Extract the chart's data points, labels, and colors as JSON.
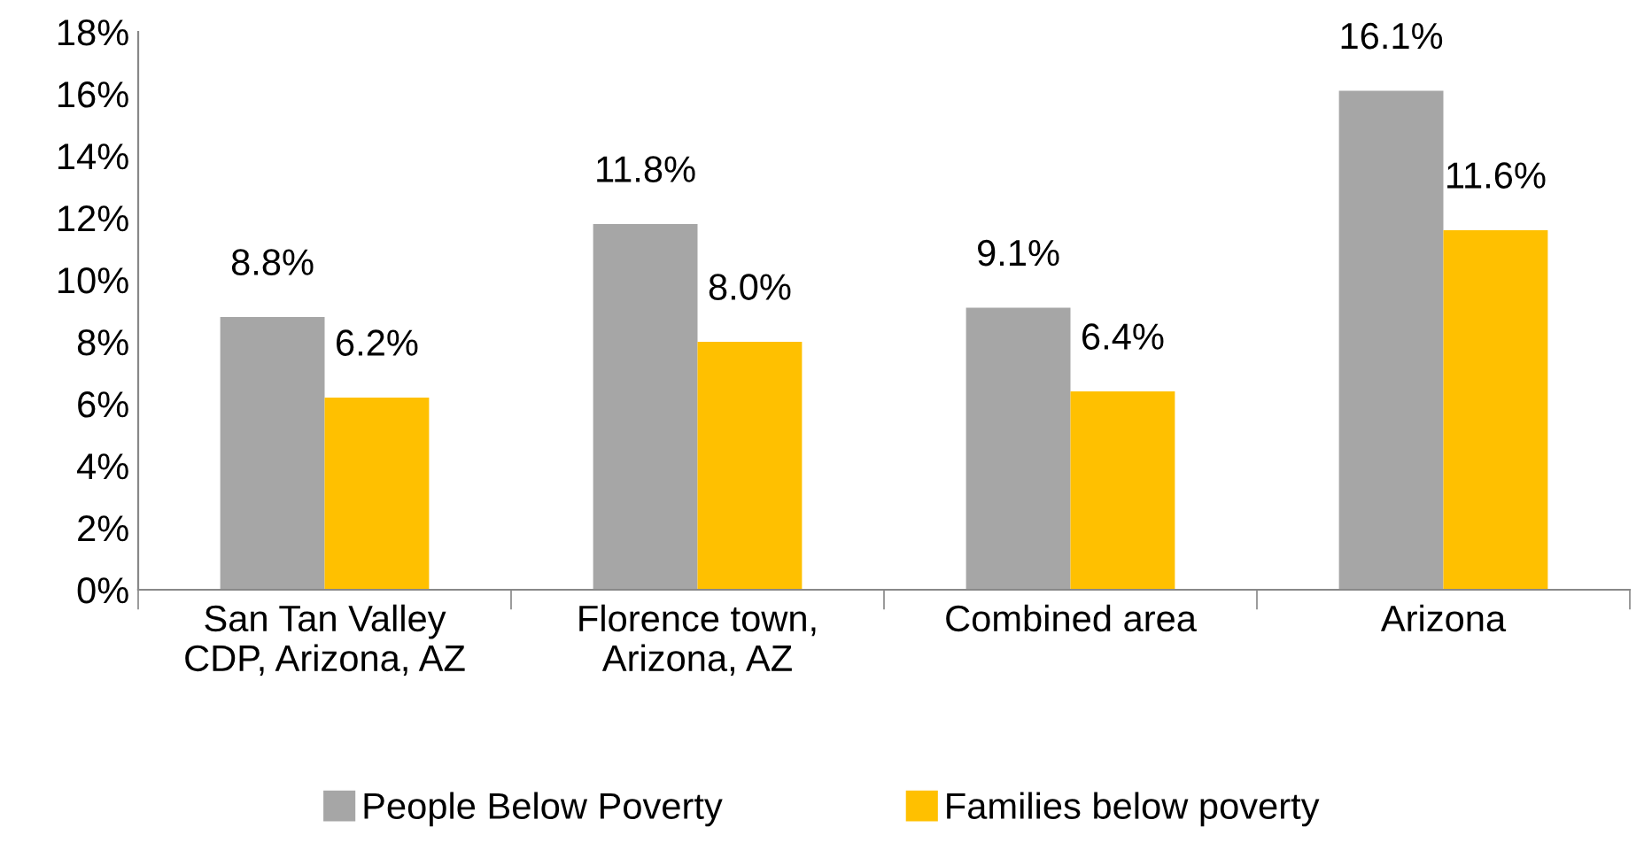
{
  "chart_data": {
    "type": "bar",
    "categories": [
      "San Tan Valley\nCDP, Arizona, AZ",
      "Florence town,\nArizona, AZ",
      "Combined area",
      "Arizona"
    ],
    "series": [
      {
        "name": "People Below Poverty",
        "color": "#a6a6a6",
        "values": [
          8.8,
          11.8,
          9.1,
          16.1
        ],
        "value_labels": [
          "8.8%",
          "11.8%",
          "9.1%",
          "16.1%"
        ]
      },
      {
        "name": "Families below poverty",
        "color": "#ffc000",
        "values": [
          6.2,
          8.0,
          6.4,
          11.6
        ],
        "value_labels": [
          "6.2%",
          "8.0%",
          "6.4%",
          "11.6%"
        ]
      }
    ],
    "ylim": [
      0,
      18
    ],
    "yticks": [
      {
        "value": 0,
        "label": "0%"
      },
      {
        "value": 2,
        "label": "2%"
      },
      {
        "value": 4,
        "label": "4%"
      },
      {
        "value": 6,
        "label": "6%"
      },
      {
        "value": 8,
        "label": "8%"
      },
      {
        "value": 10,
        "label": "10%"
      },
      {
        "value": 12,
        "label": "12%"
      },
      {
        "value": 14,
        "label": "14%"
      },
      {
        "value": 16,
        "label": "16%"
      },
      {
        "value": 18,
        "label": "18%"
      }
    ],
    "grid": false,
    "legend": "bottom"
  }
}
